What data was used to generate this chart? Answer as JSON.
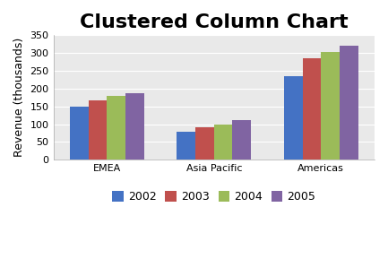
{
  "title": "Clustered Column Chart",
  "categories": [
    "EMEA",
    "Asia Pacific",
    "Americas"
  ],
  "series": {
    "2002": [
      150,
      78,
      235
    ],
    "2003": [
      168,
      91,
      286
    ],
    "2004": [
      180,
      100,
      302
    ],
    "2005": [
      188,
      112,
      320
    ]
  },
  "series_labels": [
    "2002",
    "2003",
    "2004",
    "2005"
  ],
  "colors": [
    "#4472C4",
    "#C0504D",
    "#9BBB59",
    "#8064A2"
  ],
  "ylabel": "Revenue (thousands)",
  "ylim": [
    0,
    350
  ],
  "yticks": [
    0,
    50,
    100,
    150,
    200,
    250,
    300,
    350
  ],
  "title_fontsize": 16,
  "axis_fontsize": 9,
  "tick_fontsize": 8,
  "legend_fontsize": 9,
  "background_color": "#FFFFFF",
  "plot_bg_color": "#E9E9E9"
}
